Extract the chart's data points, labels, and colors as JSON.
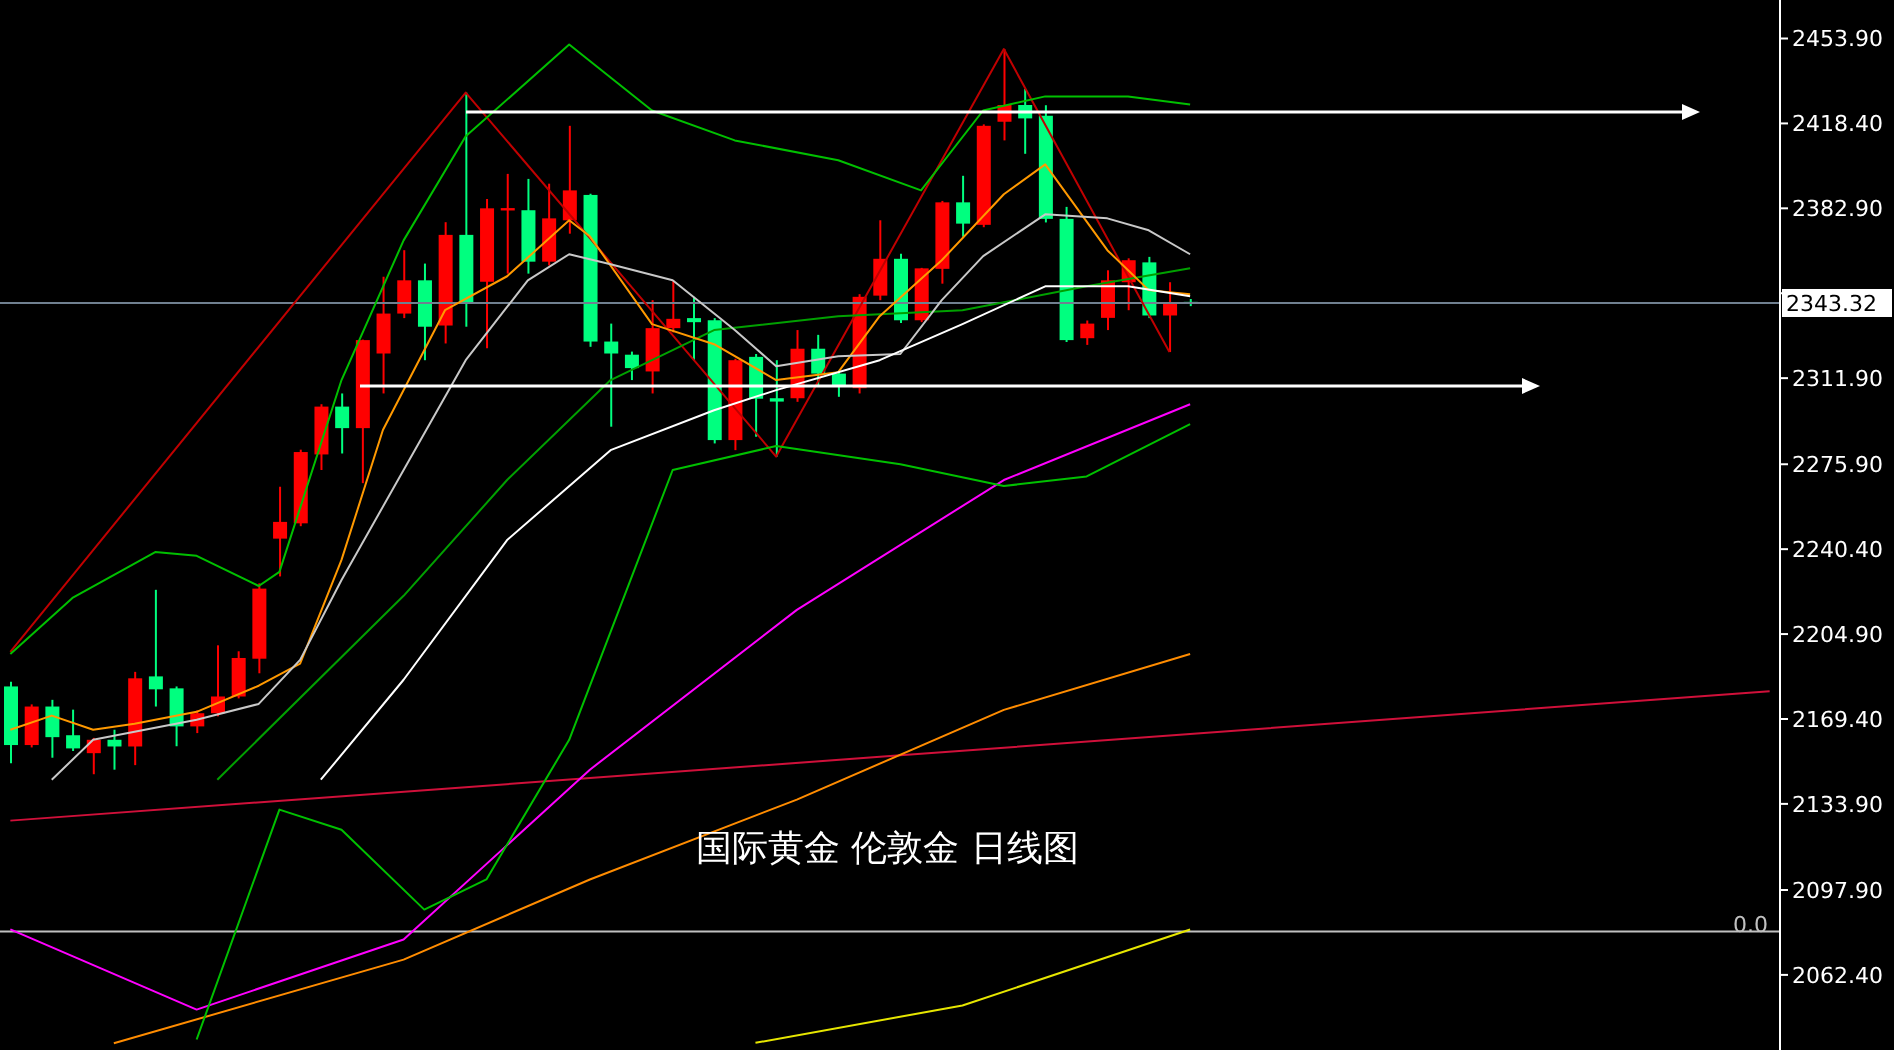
{
  "chart_data": {
    "type": "candlestick",
    "title": "国际黄金 伦敦金 日线图",
    "categories": [
      null,
      null,
      null,
      null,
      null,
      null,
      null,
      null,
      null,
      null,
      null,
      null,
      null,
      null,
      null,
      null,
      null,
      null,
      null,
      null,
      null,
      null,
      null,
      null,
      null,
      null,
      null,
      null,
      null,
      null,
      null,
      null,
      null,
      null,
      null,
      null,
      null,
      null,
      null,
      null,
      null,
      null,
      null,
      null,
      null,
      null,
      null,
      null,
      null,
      null,
      null,
      null,
      null,
      null,
      null,
      null,
      null,
      null,
      null,
      null,
      null,
      null,
      null,
      null,
      null,
      null,
      null,
      null,
      null,
      null,
      null,
      null,
      null,
      null,
      null,
      null,
      null,
      null,
      null,
      null,
      null,
      null,
      null,
      null,
      null,
      null
    ],
    "ohlc": [
      [
        2183.0,
        2185.0,
        2150.9,
        2158.5
      ],
      [
        2158.5,
        2175.5,
        2157.5,
        2174.6
      ],
      [
        2174.6,
        2177.4,
        2153.2,
        2161.8
      ],
      [
        2162.6,
        2173.3,
        2156.0,
        2157.1
      ],
      [
        2155.1,
        2161.5,
        2146.3,
        2160.7
      ],
      [
        2160.7,
        2164.9,
        2148.2,
        2157.9
      ],
      [
        2157.9,
        2189.1,
        2150.1,
        2186.4
      ],
      [
        2187.2,
        2223.4,
        2174.6,
        2181.8
      ],
      [
        2182.2,
        2183.0,
        2158.0,
        2166.3
      ],
      [
        2166.3,
        2173.0,
        2163.5,
        2171.8
      ],
      [
        2171.8,
        2200.2,
        2170.5,
        2178.8
      ],
      [
        2178.8,
        2197.7,
        2178.0,
        2194.9
      ],
      [
        2194.6,
        2226.1,
        2188.5,
        2223.9
      ],
      [
        2244.8,
        2266.5,
        2229.0,
        2251.8
      ],
      [
        2251.2,
        2282.0,
        2250.0,
        2281.0
      ],
      [
        2280.0,
        2301.0,
        2273.5,
        2300.0
      ],
      [
        2300.0,
        2305.5,
        2280.4,
        2291.0
      ],
      [
        2291.0,
        2328.0,
        2268.0,
        2327.8
      ],
      [
        2322.2,
        2354.3,
        2305.5,
        2338.9
      ],
      [
        2338.9,
        2365.4,
        2337.0,
        2352.8
      ],
      [
        2352.8,
        2359.8,
        2319.4,
        2333.4
      ],
      [
        2333.9,
        2377.1,
        2326.4,
        2371.8
      ],
      [
        2371.8,
        2431.3,
        2333.4,
        2343.1
      ],
      [
        2352.2,
        2386.8,
        2324.4,
        2382.9
      ],
      [
        2382.0,
        2397.3,
        2355.6,
        2383.0
      ],
      [
        2382.1,
        2395.2,
        2355.6,
        2360.6
      ],
      [
        2360.6,
        2393.2,
        2359.0,
        2378.7
      ],
      [
        2377.9,
        2417.4,
        2372.3,
        2390.4
      ],
      [
        2388.5,
        2389.0,
        2325.0,
        2327.2
      ],
      [
        2327.2,
        2334.7,
        2291.6,
        2322.2
      ],
      [
        2321.7,
        2323.0,
        2311.1,
        2316.1
      ],
      [
        2314.7,
        2344.5,
        2305.5,
        2332.8
      ],
      [
        2332.8,
        2352.8,
        2331.0,
        2336.7
      ],
      [
        2337.0,
        2345.9,
        2319.4,
        2335.3
      ],
      [
        2336.1,
        2337.0,
        2284.6,
        2286.0
      ],
      [
        2286.0,
        2320.0,
        2281.8,
        2319.4
      ],
      [
        2320.8,
        2322.0,
        2287.4,
        2303.3
      ],
      [
        2303.5,
        2319.4,
        2279.1,
        2302.1
      ],
      [
        2303.5,
        2332.0,
        2302.0,
        2324.2
      ],
      [
        2324.2,
        2330.0,
        2308.3,
        2313.8
      ],
      [
        2313.8,
        2315.0,
        2304.1,
        2308.3
      ],
      [
        2307.7,
        2347.0,
        2305.5,
        2345.9
      ],
      [
        2346.4,
        2377.9,
        2344.5,
        2361.8
      ],
      [
        2361.8,
        2363.9,
        2335.0,
        2336.1
      ],
      [
        2336.1,
        2358.0,
        2335.3,
        2357.8
      ],
      [
        2357.6,
        2386.0,
        2351.4,
        2385.4
      ],
      [
        2385.4,
        2396.5,
        2371.0,
        2376.5
      ],
      [
        2376.0,
        2418.0,
        2375.0,
        2417.4
      ],
      [
        2419.1,
        2449.5,
        2411.3,
        2426.1
      ],
      [
        2426.1,
        2432.8,
        2405.7,
        2420.5
      ],
      [
        2421.6,
        2426.0,
        2377.0,
        2378.5
      ],
      [
        2378.5,
        2383.5,
        2327.0,
        2327.8
      ],
      [
        2328.6,
        2336.0,
        2325.8,
        2334.7
      ],
      [
        2337.1,
        2357.0,
        2332.0,
        2352.8
      ],
      [
        2352.0,
        2362.0,
        2340.3,
        2361.2
      ],
      [
        2360.3,
        2362.6,
        2337.0,
        2338.1
      ],
      [
        2338.1,
        2352.0,
        2322.8,
        2343.6
      ],
      [
        2343.8,
        2345.0,
        2342.0,
        2343.3
      ],
      null,
      null,
      null,
      null,
      null,
      null,
      null,
      null,
      null,
      null,
      null,
      null,
      null,
      null,
      null,
      null,
      null,
      null,
      null,
      null,
      null,
      null,
      null,
      null,
      null,
      null,
      null,
      null
    ],
    "colors": [
      "#00ff7f",
      "#ff0000",
      "#00ff7f",
      "#00ff7f",
      "#ff0000",
      "#00ff7f",
      "#ff0000",
      "#00ff7f",
      "#00ff7f",
      "#ff0000",
      "#ff0000",
      "#ff0000",
      "#ff0000",
      "#ff0000",
      "#ff0000",
      "#ff0000",
      "#00ff7f",
      "#ff0000",
      "#ff0000",
      "#ff0000",
      "#00ff7f",
      "#ff0000",
      "#00ff7f",
      "#ff0000",
      "#ff0000",
      "#00ff7f",
      "#ff0000",
      "#ff0000",
      "#00ff7f",
      "#00ff7f",
      "#00ff7f",
      "#ff0000",
      "#ff0000",
      "#00ff7f",
      "#00ff7f",
      "#ff0000",
      "#00ff7f",
      "#00ff7f",
      "#ff0000",
      "#00ff7f",
      "#00ff7f",
      "#ff0000",
      "#ff0000",
      "#00ff7f",
      "#ff0000",
      "#ff0000",
      "#00ff7f",
      "#ff0000",
      "#ff0000",
      "#00ff7f",
      "#00ff7f",
      "#00ff7f",
      "#ff0000",
      "#ff0000",
      "#ff0000",
      "#00ff7f",
      "#ff0000",
      "#00ff7f",
      null,
      null,
      null,
      null,
      null,
      null,
      null,
      null,
      null,
      null,
      null,
      null,
      null,
      null,
      null,
      null,
      null,
      null,
      null,
      null,
      null,
      null,
      null,
      null,
      null,
      null,
      null,
      null
    ],
    "series": [
      {
        "type": "line",
        "color": "#c00000",
        "values": [
          2197.5,
          null,
          null,
          null,
          null,
          null,
          null,
          null,
          null,
          null,
          null,
          null,
          null,
          null,
          null,
          null,
          null,
          null,
          null,
          null,
          null,
          null,
          2431.3,
          null,
          null,
          null,
          null,
          null,
          null,
          null,
          null,
          null,
          null,
          null,
          null,
          null,
          null,
          2279.1,
          null,
          null,
          null,
          null,
          null,
          null,
          null,
          null,
          null,
          null,
          2449.5,
          null,
          null,
          null,
          null,
          null,
          null,
          null,
          2322.8,
          null,
          null,
          null,
          null,
          null,
          null,
          null,
          null,
          null,
          null,
          null,
          null,
          null,
          null,
          null,
          null,
          null,
          null,
          null,
          null,
          null,
          null,
          null,
          null,
          null,
          null,
          null,
          null,
          null
        ]
      },
      {
        "type": "line",
        "color": "#d0103a",
        "values": [
          2126.9,
          null,
          null,
          null,
          null,
          null,
          null,
          null,
          null,
          null,
          null,
          null,
          null,
          null,
          null,
          null,
          null,
          null,
          null,
          null,
          null,
          null,
          null,
          null,
          null,
          null,
          null,
          null,
          null,
          null,
          null,
          null,
          null,
          null,
          null,
          null,
          null,
          null,
          null,
          null,
          null,
          null,
          null,
          2154.2,
          null,
          null,
          null,
          null,
          null,
          null,
          null,
          null,
          null,
          null,
          null,
          null,
          null,
          null,
          null,
          null,
          null,
          null,
          null,
          null,
          null,
          null,
          null,
          null,
          null,
          null,
          null,
          null,
          null,
          null,
          null,
          null,
          null,
          null,
          null,
          null,
          null,
          null,
          null,
          null,
          null,
          2181.0
        ]
      },
      {
        "type": "line",
        "color": "#e6e600",
        "values": [
          null,
          null,
          null,
          null,
          null,
          null,
          null,
          null,
          null,
          null,
          null,
          null,
          null,
          null,
          null,
          null,
          null,
          null,
          null,
          null,
          null,
          null,
          null,
          null,
          null,
          null,
          null,
          null,
          null,
          null,
          null,
          null,
          null,
          null,
          null,
          null,
          2034.0,
          null,
          null,
          null,
          null,
          null,
          null,
          null,
          null,
          null,
          2049.6,
          null,
          null,
          null,
          null,
          null,
          null,
          null,
          null,
          null,
          null,
          2081.4,
          null,
          null,
          null,
          null,
          null,
          null,
          null,
          null,
          null,
          null,
          null,
          null,
          null,
          null,
          null,
          null,
          null,
          null,
          null,
          null,
          null,
          null,
          null,
          null,
          null,
          null,
          null,
          null
        ]
      },
      {
        "type": "line",
        "color": "#ff8c00",
        "values": [
          null,
          null,
          null,
          null,
          null,
          2033.8,
          null,
          null,
          null,
          null,
          null,
          null,
          null,
          null,
          null,
          null,
          null,
          null,
          null,
          2068.8,
          null,
          null,
          null,
          null,
          null,
          null,
          null,
          null,
          2102.3,
          null,
          null,
          null,
          null,
          null,
          null,
          null,
          null,
          null,
          2135.7,
          null,
          null,
          null,
          null,
          null,
          null,
          null,
          null,
          null,
          2173.2,
          null,
          null,
          null,
          null,
          null,
          null,
          null,
          null,
          2196.6,
          null,
          null,
          null,
          null,
          null,
          null,
          null,
          null,
          null,
          null,
          null,
          null,
          null,
          null,
          null,
          null,
          null,
          null,
          null,
          null,
          null,
          null,
          null,
          null,
          null,
          null,
          null,
          null
        ]
      },
      {
        "type": "line",
        "color": "#ff00ff",
        "values": [
          2081.4,
          null,
          null,
          null,
          null,
          null,
          null,
          null,
          null,
          2047.9,
          null,
          null,
          null,
          null,
          null,
          null,
          null,
          null,
          null,
          2077.2,
          null,
          null,
          null,
          null,
          null,
          null,
          null,
          null,
          2148.2,
          null,
          null,
          null,
          null,
          null,
          null,
          null,
          null,
          null,
          2215.0,
          null,
          null,
          null,
          null,
          null,
          null,
          null,
          null,
          null,
          2269.3,
          null,
          null,
          null,
          null,
          null,
          null,
          null,
          null,
          2301.0,
          null,
          null,
          null,
          null,
          null,
          null,
          null,
          null,
          null,
          null,
          null,
          null,
          null,
          null,
          null,
          null,
          null,
          null,
          null,
          null,
          null,
          null,
          null,
          null,
          null,
          null,
          null,
          null
        ]
      },
      {
        "type": "line",
        "color": "#00c000",
        "values": [
          2196.6,
          null,
          null,
          2220.0,
          null,
          null,
          null,
          2239.2,
          null,
          2237.6,
          null,
          null,
          2225.0,
          2230.9,
          null,
          null,
          2311.1,
          null,
          null,
          2369.5,
          null,
          null,
          2413.0,
          null,
          null,
          null,
          null,
          2451.4,
          null,
          null,
          null,
          2423.8,
          null,
          null,
          null,
          2411.3,
          null,
          null,
          null,
          null,
          2403.0,
          null,
          null,
          null,
          2390.4,
          null,
          null,
          2423.8,
          null,
          null,
          2429.7,
          null,
          null,
          null,
          2429.7,
          null,
          null,
          2426.3,
          null,
          null,
          null,
          null,
          null,
          null,
          null,
          null,
          null,
          null,
          null,
          null,
          null,
          null,
          null,
          null,
          null,
          null,
          null,
          null,
          null,
          null,
          null,
          null,
          null,
          null,
          null,
          null
        ]
      },
      {
        "type": "line",
        "color": "#00a000",
        "values": [
          null,
          null,
          null,
          null,
          null,
          null,
          null,
          null,
          null,
          null,
          2144.0,
          null,
          null,
          null,
          null,
          null,
          null,
          null,
          null,
          2220.9,
          null,
          null,
          null,
          null,
          2269.3,
          null,
          null,
          null,
          null,
          2311.1,
          null,
          null,
          null,
          null,
          2332.0,
          null,
          null,
          null,
          null,
          null,
          2337.8,
          null,
          null,
          null,
          null,
          null,
          2340.3,
          null,
          null,
          null,
          null,
          null,
          2350.3,
          null,
          null,
          null,
          null,
          2357.8,
          null,
          null,
          null,
          null,
          null,
          null,
          null,
          null,
          null,
          null,
          null,
          null,
          null,
          null,
          null,
          null,
          null,
          null,
          null,
          null,
          null,
          null,
          null,
          null,
          null,
          null,
          null,
          null
        ]
      },
      {
        "type": "line",
        "color": "#00c000",
        "values": [
          null,
          null,
          null,
          null,
          null,
          null,
          null,
          null,
          null,
          2035.4,
          null,
          null,
          null,
          2131.5,
          null,
          null,
          2123.1,
          null,
          null,
          null,
          2089.7,
          null,
          null,
          2102.3,
          null,
          null,
          null,
          2160.7,
          null,
          null,
          null,
          null,
          2273.5,
          null,
          null,
          null,
          null,
          2283.5,
          null,
          null,
          null,
          null,
          null,
          2275.9,
          null,
          null,
          null,
          null,
          2266.8,
          null,
          null,
          null,
          2270.8,
          null,
          null,
          null,
          null,
          2292.7,
          null,
          null,
          null,
          null,
          null,
          null,
          null,
          null,
          null,
          null,
          null,
          null,
          null,
          null,
          null,
          null,
          null,
          null,
          null,
          null,
          null,
          null,
          null,
          null,
          null,
          null,
          null,
          null
        ]
      },
      {
        "type": "line",
        "color": "#ff9900",
        "values": [
          2164.9,
          null,
          2170.8,
          null,
          2164.9,
          null,
          2167.4,
          null,
          null,
          2172.4,
          null,
          null,
          2183.3,
          null,
          2192.5,
          null,
          2235.9,
          null,
          2290.2,
          null,
          null,
          2340.3,
          null,
          null,
          2354.5,
          null,
          null,
          2377.9,
          2371.2,
          null,
          null,
          2334.5,
          null,
          null,
          2326.1,
          null,
          null,
          2311.1,
          null,
          null,
          2314.4,
          null,
          2337.8,
          null,
          null,
          2361.2,
          null,
          null,
          2388.8,
          null,
          2401.3,
          null,
          null,
          2365.4,
          null,
          2348.7,
          null,
          2347.0,
          null,
          null,
          null,
          null,
          null,
          null,
          null,
          null,
          null,
          null,
          null,
          null,
          null,
          null,
          null,
          null,
          null,
          null,
          null,
          null,
          null,
          null,
          null,
          null,
          null,
          null,
          null,
          null
        ]
      },
      {
        "type": "line",
        "color": "#c8c8c8",
        "values": [
          null,
          null,
          2144.0,
          null,
          2160.7,
          null,
          null,
          null,
          null,
          2169.1,
          null,
          null,
          2175.7,
          null,
          2194.1,
          null,
          2227.5,
          null,
          null,
          2273.5,
          null,
          null,
          2319.4,
          null,
          null,
          2352.8,
          null,
          2363.7,
          null,
          2359.5,
          null,
          null,
          2352.8,
          null,
          null,
          2332.0,
          null,
          2316.9,
          null,
          null,
          2321.1,
          null,
          null,
          2322.0,
          null,
          2344.5,
          null,
          2362.9,
          null,
          null,
          2380.4,
          null,
          null,
          2378.7,
          null,
          2373.7,
          null,
          2363.7,
          null,
          null,
          null,
          null,
          null,
          null,
          null,
          null,
          null,
          null,
          null,
          null,
          null,
          null,
          null,
          null,
          null,
          null,
          null,
          null,
          null,
          null,
          null,
          null,
          null,
          null,
          null,
          null
        ]
      },
      {
        "type": "line",
        "color": "#ffffff",
        "values": [
          null,
          null,
          null,
          null,
          null,
          null,
          null,
          null,
          null,
          null,
          null,
          null,
          null,
          null,
          null,
          2144.0,
          null,
          null,
          null,
          2185.8,
          null,
          null,
          null,
          null,
          2244.2,
          null,
          null,
          null,
          null,
          2281.8,
          null,
          null,
          null,
          null,
          2298.5,
          null,
          null,
          2306.9,
          null,
          null,
          null,
          null,
          2319.4,
          null,
          null,
          null,
          2334.5,
          null,
          null,
          null,
          2350.3,
          null,
          null,
          null,
          2350.3,
          null,
          null,
          2346.1,
          null,
          null,
          null,
          null,
          null,
          null,
          null,
          null,
          null,
          null,
          null,
          null,
          null,
          null,
          null,
          null,
          null,
          null,
          null,
          null,
          null,
          null,
          null,
          null,
          null,
          null,
          null,
          null
        ]
      }
    ],
    "ylim": [
      2031,
      2470
    ],
    "yticks": [
      {
        "value": 2062.4,
        "label": "2062.40"
      },
      {
        "value": 2097.9,
        "label": "2097.90"
      },
      {
        "value": 2133.9,
        "label": "2133.90"
      },
      {
        "value": 2169.4,
        "label": "2169.40"
      },
      {
        "value": 2204.9,
        "label": "2204.90"
      },
      {
        "value": 2240.4,
        "label": "2240.40"
      },
      {
        "value": 2275.9,
        "label": "2275.90"
      },
      {
        "value": 2311.9,
        "label": "2311.90"
      },
      {
        "value": 2347.4,
        "label": null
      },
      {
        "value": 2382.9,
        "label": "2382.90"
      },
      {
        "value": 2418.4,
        "label": "2418.40"
      },
      {
        "value": 2453.9,
        "label": "2453.90"
      }
    ],
    "tick_labels": "y",
    "annotations": [
      "0.0"
    ],
    "ref_lines": [
      {
        "axis": "y",
        "value": 2343.32,
        "label": "2343.32",
        "color": "#708090"
      },
      {
        "axis": "y",
        "value": 2080.5,
        "color": "#c0c0c0"
      }
    ]
  }
}
